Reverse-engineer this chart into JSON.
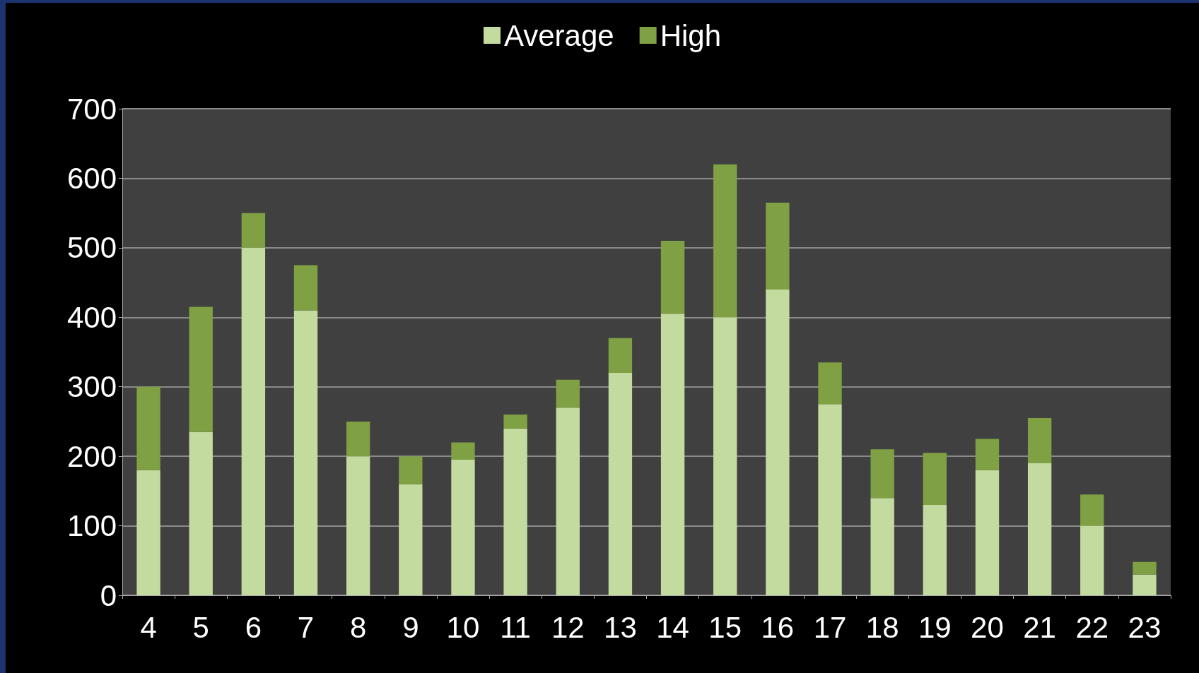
{
  "chart_data": {
    "type": "bar",
    "stacked": true,
    "categories": [
      "4",
      "5",
      "6",
      "7",
      "8",
      "9",
      "10",
      "11",
      "12",
      "13",
      "14",
      "15",
      "16",
      "17",
      "18",
      "19",
      "20",
      "21",
      "22",
      "23"
    ],
    "series": [
      {
        "name": "Average",
        "color": "#c4dba0",
        "values": [
          180,
          235,
          500,
          410,
          200,
          160,
          195,
          240,
          270,
          320,
          405,
          400,
          440,
          275,
          140,
          130,
          180,
          190,
          100,
          30
        ]
      },
      {
        "name": "High",
        "color": "#7fa043",
        "values": [
          120,
          180,
          50,
          65,
          50,
          40,
          25,
          20,
          40,
          50,
          105,
          220,
          125,
          60,
          70,
          75,
          45,
          65,
          45,
          18
        ]
      }
    ],
    "ylim": [
      0,
      700
    ],
    "yticks": [
      0,
      100,
      200,
      300,
      400,
      500,
      600,
      700
    ],
    "grid": "y",
    "legend": "top"
  }
}
